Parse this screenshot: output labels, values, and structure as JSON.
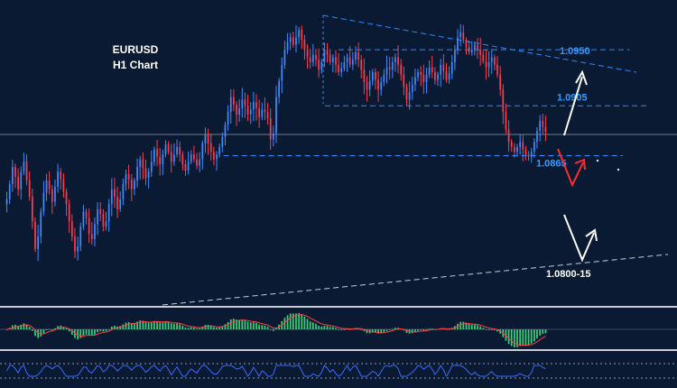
{
  "chart_data": {
    "type": "candlestick",
    "title": "EURUSD",
    "subtitle": "H1 Chart",
    "ylim": [
      1.0745,
      1.099
    ],
    "colors": {
      "background": "#0b1a33",
      "bull": "#3d8bff",
      "bear": "#ff3b4a",
      "level_line": "#2b8bff",
      "level_text": "#2e9bff",
      "arrow_up": "#ffffff",
      "arrow_red": "#ff2a2a",
      "hist_pos": "#35d07a",
      "osc_line": "#3a6cff",
      "separator": "#c9ccd4"
    },
    "closes": [
      1.083,
      1.0842,
      1.0856,
      1.0848,
      1.0838,
      1.0852,
      1.086,
      1.0845,
      1.0832,
      1.0812,
      1.079,
      1.08,
      1.082,
      1.0835,
      1.0845,
      1.0838,
      1.0828,
      1.084,
      1.0852,
      1.0846,
      1.0836,
      1.0826,
      1.0812,
      1.08,
      1.0788,
      1.0792,
      1.0808,
      1.082,
      1.0815,
      1.0802,
      1.0798,
      1.081,
      1.0822,
      1.0818,
      1.0808,
      1.0812,
      1.0826,
      1.0838,
      1.0832,
      1.0822,
      1.083,
      1.0842,
      1.085,
      1.0846,
      1.0838,
      1.0845,
      1.0856,
      1.0862,
      1.0855,
      1.0847,
      1.0852,
      1.086,
      1.087,
      1.0864,
      1.0858,
      1.0866,
      1.0874,
      1.0868,
      1.086,
      1.0866,
      1.0872,
      1.0866,
      1.0858,
      1.0853,
      1.086,
      1.0866,
      1.0862,
      1.0857,
      1.0862,
      1.0875,
      1.0882,
      1.0875,
      1.0868,
      1.0862,
      1.0866,
      1.0872,
      1.088,
      1.089,
      1.09,
      1.0912,
      1.0906,
      1.0898,
      1.0903,
      1.091,
      1.0905,
      1.0898,
      1.0902,
      1.0908,
      1.0903,
      1.0896,
      1.0902,
      1.09,
      1.0895,
      1.0878,
      1.0883,
      1.0912,
      1.0925,
      1.0938,
      1.095,
      1.0956,
      1.096,
      1.0954,
      1.096,
      1.0966,
      1.0958,
      1.095,
      1.0944,
      1.094,
      1.0946,
      1.0942,
      1.0934,
      1.094,
      1.095,
      1.0946,
      1.094,
      1.0944,
      1.0938,
      1.0932,
      1.0935,
      1.094,
      1.0944,
      1.0938,
      1.0942,
      1.0948,
      1.0942,
      1.0934,
      1.0924,
      1.0918,
      1.0925,
      1.0932,
      1.0926,
      1.0918,
      1.0924,
      1.093,
      1.0936,
      1.0934,
      1.094,
      1.0944,
      1.0938,
      1.093,
      1.092,
      1.091,
      1.0916,
      1.0922,
      1.0928,
      1.0932,
      1.093,
      1.0924,
      1.093,
      1.0936,
      1.0932,
      1.0926,
      1.093,
      1.0938,
      1.0933,
      1.0926,
      1.0931,
      1.094,
      1.095,
      1.096,
      1.0964,
      1.0958,
      1.0952,
      1.0948,
      1.095,
      1.0954,
      1.095,
      1.0946,
      1.0941,
      1.0936,
      1.094,
      1.0944,
      1.0938,
      1.093,
      1.0918,
      1.09,
      1.0886,
      1.0876,
      1.0872,
      1.0868,
      1.0872,
      1.0876,
      1.087,
      1.0866,
      1.0864,
      1.0868,
      1.0876,
      1.0885,
      1.0893,
      1.0888,
      1.0884
    ],
    "levels": [
      {
        "value": 1.095,
        "label": "1.0950",
        "start": 0.5,
        "end": 0.93,
        "label_color": "level"
      },
      {
        "value": 1.0905,
        "label": "1.0905",
        "start": 0.48,
        "end": 0.955,
        "label_color": "level"
      },
      {
        "value": 1.0865,
        "label": "1.0865",
        "start": 0.33,
        "end": 0.92,
        "label_color": "level"
      },
      {
        "value": 1.08,
        "label": "1.0800-15",
        "start": 0.8,
        "end": 0.8,
        "label_color": "white"
      }
    ],
    "horizontal_ref": 1.0882,
    "oscillator_hist": [],
    "oscillator_line": []
  }
}
